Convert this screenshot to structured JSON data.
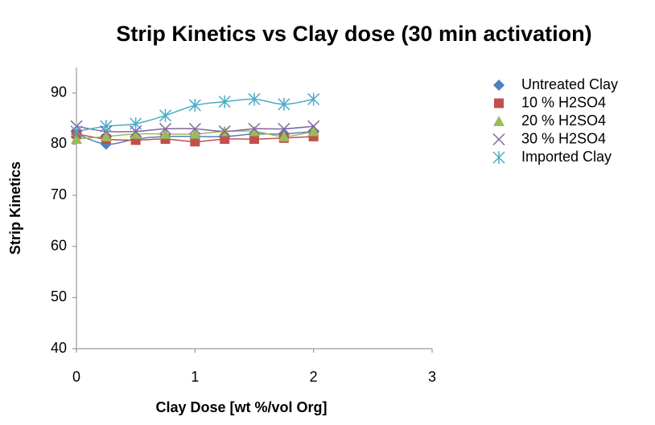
{
  "chart_data": {
    "type": "scatter",
    "title": "Strip Kinetics vs Clay dose (30 min activation)",
    "x_label": "Clay Dose [wt %/vol Org]",
    "y_label": "Strip Kinetics",
    "x": [
      0,
      0.25,
      0.5,
      0.75,
      1,
      1.25,
      1.5,
      1.75,
      2
    ],
    "series": [
      {
        "name": "Untreated Clay",
        "color": "#4f81bd",
        "marker": "diamond",
        "values": [
          82,
          80,
          81,
          81.5,
          81.5,
          81.5,
          82,
          82,
          82.5
        ]
      },
      {
        "name": "10 % H2SO4",
        "color": "#c0504d",
        "marker": "square",
        "values": [
          82,
          81,
          80.8,
          81,
          80.5,
          81,
          81,
          81.2,
          81.5
        ]
      },
      {
        "name": "20 % H2SO4",
        "color": "#9bbb59",
        "marker": "triangle",
        "values": [
          81,
          81.5,
          82,
          82,
          82,
          82.5,
          82.5,
          81.5,
          82.5
        ]
      },
      {
        "name": "30 % H2SO4",
        "color": "#8064a2",
        "marker": "x",
        "values": [
          83.5,
          82.5,
          82.5,
          83,
          83,
          82.5,
          83,
          83,
          83.5
        ]
      },
      {
        "name": "Imported Clay",
        "color": "#4bacc6",
        "marker": "star",
        "values": [
          82.5,
          83.5,
          84,
          85.6,
          87.6,
          88.3,
          88.8,
          87.8,
          88.8
        ]
      }
    ],
    "xlim": [
      0,
      3
    ],
    "xticks": [
      0,
      1,
      2,
      3
    ],
    "ylim": [
      40,
      95
    ],
    "yticks": [
      40,
      50,
      60,
      70,
      80,
      90
    ],
    "grid": false,
    "legend": "right"
  }
}
